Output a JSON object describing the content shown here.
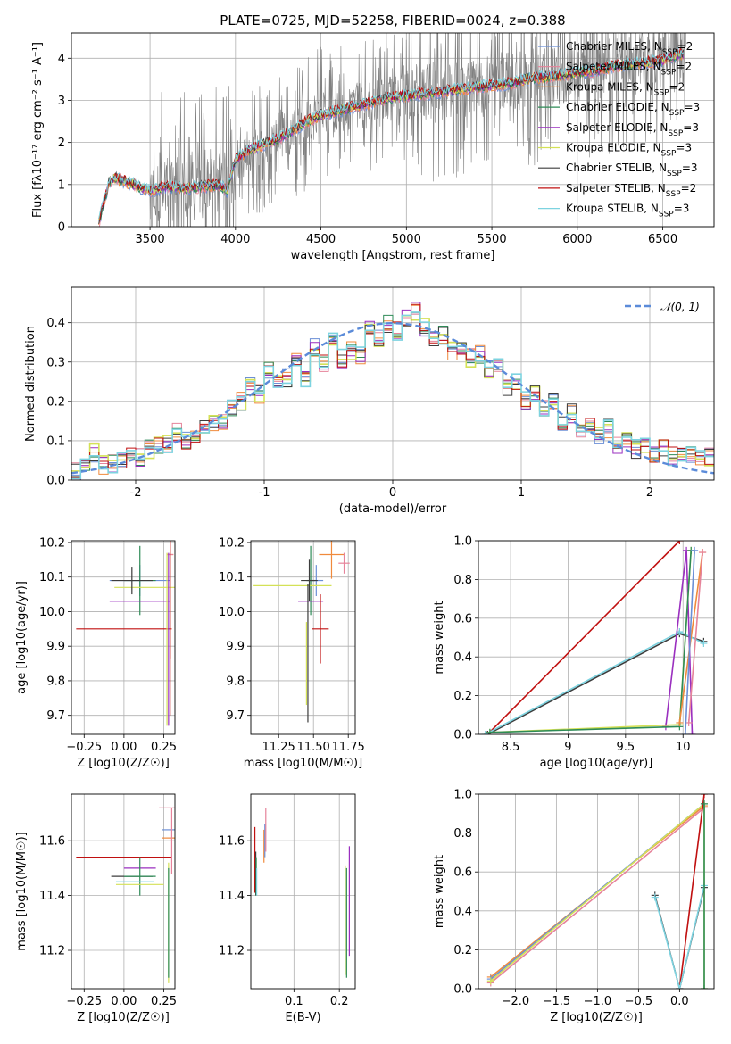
{
  "title": "PLATE=0725, MJD=52258, FIBERID=0024, z=0.388",
  "colors": {
    "Chabrier MILES": "#6b8fd6",
    "Salpeter MILES": "#e6839a",
    "Kroupa MILES": "#f08a3c",
    "Chabrier ELODIE": "#2e8b57",
    "Salpeter ELODIE": "#9a2fbf",
    "Kroupa ELODIE": "#d4e157",
    "Chabrier STELIB": "#3d3d3d",
    "Salpeter STELIB": "#c01010",
    "Kroupa STELIB": "#7dd3e0",
    "data": "#808080",
    "gaussian": "#5b8bd9"
  },
  "chart_data": [
    {
      "id": "spectrum",
      "type": "line",
      "xlabel": "wavelength [Angstrom, rest frame]",
      "ylabel": "Flux [f$_\\lambda$ 10$^{-17}$ erg cm$^{-2}$ s$^{-1}$ A$^{-1}$]",
      "ylabel_display": "Flux [fλ10⁻¹⁷ erg cm⁻² s⁻¹ A⁻¹]",
      "xlim": [
        3040,
        6800
      ],
      "ylim": [
        0,
        4.6
      ],
      "xticks": [
        3500,
        4000,
        4500,
        5000,
        5500,
        6000,
        6500
      ],
      "yticks": [
        0,
        1,
        2,
        3,
        4
      ],
      "legend_position": "upper right",
      "legend": [
        {
          "label": "Chabrier MILES, N",
          "sub": "SSP",
          "tail": "=2",
          "series": "Chabrier MILES"
        },
        {
          "label": "Salpeter MILES, N",
          "sub": "SSP",
          "tail": "=2",
          "series": "Salpeter MILES"
        },
        {
          "label": "Kroupa MILES, N",
          "sub": "SSP",
          "tail": "=2",
          "series": "Kroupa MILES"
        },
        {
          "label": "Chabrier ELODIE, N",
          "sub": "SSP",
          "tail": "=3",
          "series": "Chabrier ELODIE"
        },
        {
          "label": "Salpeter ELODIE, N",
          "sub": "SSP",
          "tail": "=3",
          "series": "Salpeter ELODIE"
        },
        {
          "label": "Kroupa ELODIE, N",
          "sub": "SSP",
          "tail": "=3",
          "series": "Kroupa ELODIE"
        },
        {
          "label": "Chabrier STELIB, N",
          "sub": "SSP",
          "tail": "=3",
          "series": "Chabrier STELIB"
        },
        {
          "label": "Salpeter STELIB, N",
          "sub": "SSP",
          "tail": "=2",
          "series": "Salpeter STELIB"
        },
        {
          "label": "Kroupa STELIB, N",
          "sub": "SSP",
          "tail": "=3",
          "series": "Kroupa STELIB"
        }
      ],
      "continuum_model": {
        "x": [
          3200,
          3260,
          3300,
          3400,
          3500,
          3600,
          3700,
          3800,
          3900,
          3950,
          4000,
          4100,
          4200,
          4300,
          4400,
          4500,
          4600,
          4700,
          4800,
          4850,
          4900,
          5000,
          5100,
          5200,
          5300,
          5400,
          5500,
          5600,
          5700,
          5800,
          5900,
          6000,
          6100,
          6200,
          6300,
          6400,
          6500,
          6600
        ],
        "y": [
          0.1,
          1.05,
          1.15,
          1.0,
          0.85,
          0.95,
          0.9,
          0.95,
          1.0,
          0.85,
          1.6,
          1.85,
          2.0,
          2.2,
          2.45,
          2.65,
          2.75,
          2.85,
          2.95,
          3.0,
          3.05,
          3.1,
          3.15,
          3.2,
          3.25,
          3.3,
          3.35,
          3.4,
          3.5,
          3.55,
          3.6,
          3.65,
          3.7,
          3.8,
          3.85,
          3.9,
          3.95,
          4.1
        ]
      }
    },
    {
      "id": "residuals",
      "type": "histogram",
      "xlabel": "(data-model)/error",
      "ylabel": "Normed distribution",
      "xlim": [
        -2.5,
        2.5
      ],
      "ylim": [
        0,
        0.49
      ],
      "xticks": [
        -2,
        -1,
        0,
        1,
        2
      ],
      "yticks": [
        0.0,
        0.1,
        0.2,
        0.3,
        0.4
      ],
      "legend": "𝒩(0, 1)",
      "bin_width": 0.1,
      "hist_counts": [
        0.02,
        0.04,
        0.07,
        0.04,
        0.04,
        0.05,
        0.07,
        0.06,
        0.08,
        0.09,
        0.09,
        0.12,
        0.1,
        0.12,
        0.14,
        0.14,
        0.15,
        0.18,
        0.2,
        0.24,
        0.22,
        0.28,
        0.24,
        0.26,
        0.31,
        0.26,
        0.34,
        0.3,
        0.36,
        0.31,
        0.33,
        0.32,
        0.38,
        0.36,
        0.4,
        0.38,
        0.41,
        0.43,
        0.39,
        0.36,
        0.37,
        0.33,
        0.34,
        0.31,
        0.32,
        0.28,
        0.29,
        0.24,
        0.25,
        0.2,
        0.22,
        0.18,
        0.2,
        0.15,
        0.17,
        0.12,
        0.14,
        0.11,
        0.13,
        0.09,
        0.1,
        0.08,
        0.09,
        0.07,
        0.08,
        0.06,
        0.07,
        0.06,
        0.05,
        0.06
      ]
    },
    {
      "id": "age-vs-Z",
      "type": "errorbar",
      "xlabel": "Z [log10(Z/Z☉)]",
      "ylabel": "age  [log10(age/yr)]",
      "xlim": [
        -0.33,
        0.32
      ],
      "ylim": [
        9.645,
        10.205
      ],
      "xticks": [
        -0.25,
        0.0,
        0.25
      ],
      "xticklabels": [
        "−0.25",
        "0.00",
        "0.25"
      ],
      "yticks": [
        9.7,
        9.8,
        9.9,
        10.0,
        10.1,
        10.2
      ],
      "points": [
        {
          "series": "Chabrier MILES",
          "x": 0.1,
          "y": 10.09,
          "xerr": 0.19,
          "yerr": 0.045
        },
        {
          "series": "Chabrier ELODIE",
          "x": 0.1,
          "y": 10.09,
          "xerr": 0.1,
          "yerr": 0.1
        },
        {
          "series": "Salpeter ELODIE",
          "x": 0.1,
          "y": 10.03,
          "xerr": 0.19,
          "yerr": 0.0
        },
        {
          "series": "Kroupa ELODIE",
          "x": 0.16,
          "y": 10.07,
          "xerr": 0.22,
          "yerr": 0.0
        },
        {
          "series": "Chabrier STELIB",
          "x": 0.05,
          "y": 10.09,
          "xerr": 0.13,
          "yerr": 0.04
        },
        {
          "series": "Salpeter STELIB",
          "x": 0.0,
          "y": 9.95,
          "xerr": 0.3,
          "yerr": 0.0
        },
        {
          "series": "Kroupa MILES",
          "x": 0.29,
          "y": 10.165,
          "xerr": 0.02,
          "yerr": 0.3
        },
        {
          "series": "Salpeter MILES",
          "x": 0.29,
          "y": 10.165,
          "xerr": 0.02,
          "yerr": 0.3
        },
        {
          "series": "Salpeter STELIB",
          "x": 0.29,
          "y": 10.1,
          "xerr": 0.0,
          "yerr": 0.4
        },
        {
          "series": "Kroupa ELODIE",
          "x": 0.27,
          "y": 9.92,
          "xerr": 0.0,
          "yerr": 0.25
        },
        {
          "series": "Salpeter ELODIE",
          "x": 0.28,
          "y": 9.92,
          "xerr": 0.0,
          "yerr": 0.25
        }
      ]
    },
    {
      "id": "age-vs-mass",
      "type": "errorbar",
      "xlabel": "mass [log10(M/M☉)]",
      "ylabel": "",
      "xlim": [
        11.05,
        11.8
      ],
      "ylim": [
        9.645,
        10.205
      ],
      "xticks": [
        11.25,
        11.5,
        11.75
      ],
      "xticklabels": [
        "11.25",
        "11.50",
        "11.75"
      ],
      "yticks": [
        9.7,
        9.8,
        9.9,
        10.0,
        10.1,
        10.2
      ],
      "points": [
        {
          "series": "Chabrier MILES",
          "x": 11.52,
          "y": 10.09,
          "xerr": 0.05,
          "yerr": 0.045
        },
        {
          "series": "Chabrier ELODIE",
          "x": 11.48,
          "y": 10.09,
          "xerr": 0.03,
          "yerr": 0.1
        },
        {
          "series": "Salpeter ELODIE",
          "x": 11.48,
          "y": 10.03,
          "xerr": 0.09,
          "yerr": 0.0
        },
        {
          "series": "Kroupa ELODIE",
          "x": 11.35,
          "y": 10.075,
          "xerr": 0.28,
          "yerr": 0.0
        },
        {
          "series": "Chabrier STELIB",
          "x": 11.47,
          "y": 10.09,
          "xerr": 0.06,
          "yerr": 0.06
        },
        {
          "series": "Salpeter STELIB",
          "x": 11.55,
          "y": 9.95,
          "xerr": 0.06,
          "yerr": 0.1
        },
        {
          "series": "Kroupa MILES",
          "x": 11.63,
          "y": 10.165,
          "xerr": 0.09,
          "yerr": 0.07
        },
        {
          "series": "Salpeter MILES",
          "x": 11.72,
          "y": 10.14,
          "xerr": 0.04,
          "yerr": 0.03
        },
        {
          "series": "Kroupa ELODIE",
          "x": 11.45,
          "y": 9.85,
          "xerr": 0.0,
          "yerr": 0.12
        },
        {
          "series": "Chabrier STELIB",
          "x": 11.46,
          "y": 9.88,
          "xerr": 0.0,
          "yerr": 0.2
        }
      ]
    },
    {
      "id": "weight-vs-age",
      "type": "line",
      "xlabel": "age  [log10(age/yr)]",
      "ylabel": "mass weight",
      "xlim": [
        8.22,
        10.27
      ],
      "ylim": [
        0.0,
        1.0
      ],
      "xticks": [
        8.5,
        9.0,
        9.5,
        10.0
      ],
      "yticks": [
        0.0,
        0.2,
        0.4,
        0.6,
        0.8,
        1.0
      ],
      "series": [
        {
          "series": "Salpeter STELIB",
          "x": [
            8.3,
            9.97
          ],
          "y": [
            0.0,
            1.0
          ]
        },
        {
          "series": "Chabrier STELIB",
          "x": [
            8.3,
            9.97,
            10.18
          ],
          "y": [
            0.0,
            0.52,
            0.48
          ]
        },
        {
          "series": "Kroupa STELIB",
          "x": [
            8.28,
            9.97,
            10.18
          ],
          "y": [
            0.0,
            0.53,
            0.47
          ]
        },
        {
          "series": "Salpeter ELODIE",
          "x": [
            9.85,
            10.03,
            10.08
          ],
          "y": [
            0.04,
            0.95,
            0.0
          ]
        },
        {
          "series": "Kroupa ELODIE",
          "x": [
            8.32,
            9.97,
            10.07
          ],
          "y": [
            0.01,
            0.05,
            0.95
          ]
        },
        {
          "series": "Chabrier ELODIE",
          "x": [
            8.32,
            9.97,
            10.07
          ],
          "y": [
            0.01,
            0.04,
            0.95
          ]
        },
        {
          "series": "Kroupa MILES",
          "x": [
            9.97,
            10.17
          ],
          "y": [
            0.06,
            0.94
          ]
        },
        {
          "series": "Salpeter MILES",
          "x": [
            10.05,
            10.17
          ],
          "y": [
            0.06,
            0.94
          ]
        },
        {
          "series": "Chabrier MILES",
          "x": [
            10.02,
            10.1
          ],
          "y": [
            0.0,
            0.95
          ]
        }
      ]
    },
    {
      "id": "mass-vs-Z",
      "type": "errorbar",
      "xlabel": "Z [log10(Z/Z☉)]",
      "ylabel": "mass [log10(M/M☉)]",
      "xlim": [
        -0.33,
        0.32
      ],
      "ylim": [
        11.06,
        11.77
      ],
      "xticks": [
        -0.25,
        0.0,
        0.25
      ],
      "xticklabels": [
        "−0.25",
        "0.00",
        "0.25"
      ],
      "yticks": [
        11.2,
        11.4,
        11.6
      ],
      "points": [
        {
          "series": "Salpeter STELIB",
          "x": 0.0,
          "y": 11.54,
          "xerr": 0.3,
          "yerr": 0.0
        },
        {
          "series": "Salpeter ELODIE",
          "x": 0.1,
          "y": 11.5,
          "xerr": 0.1,
          "yerr": 0.0
        },
        {
          "series": "Chabrier STELIB",
          "x": 0.05,
          "y": 11.47,
          "xerr": 0.13,
          "yerr": 0.0
        },
        {
          "series": "Chabrier ELODIE",
          "x": 0.1,
          "y": 11.47,
          "xerr": 0.1,
          "yerr": 0.07
        },
        {
          "series": "Kroupa ELODIE",
          "x": 0.1,
          "y": 11.44,
          "xerr": 0.15,
          "yerr": 0.0
        },
        {
          "series": "Kroupa STELIB",
          "x": 0.07,
          "y": 11.45,
          "xerr": 0.12,
          "yerr": 0.0
        },
        {
          "series": "Chabrier MILES",
          "x": 0.28,
          "y": 11.64,
          "xerr": 0.04,
          "yerr": 0.0
        },
        {
          "series": "Kroupa MILES",
          "x": 0.28,
          "y": 11.61,
          "xerr": 0.04,
          "yerr": 0.0
        },
        {
          "series": "Salpeter MILES",
          "x": 0.27,
          "y": 11.72,
          "xerr": 0.05,
          "yerr": 0.0
        },
        {
          "series": "Salpeter MILES",
          "x": 0.3,
          "y": 11.6,
          "xerr": 0.0,
          "yerr": 0.12
        },
        {
          "series": "Kroupa ELODIE",
          "x": 0.28,
          "y": 11.3,
          "xerr": 0.0,
          "yerr": 0.22
        },
        {
          "series": "Chabrier ELODIE",
          "x": 0.28,
          "y": 11.3,
          "xerr": 0.0,
          "yerr": 0.2
        }
      ]
    },
    {
      "id": "mass-vs-EBV",
      "type": "errorbar",
      "xlabel": "E(B-V)",
      "ylabel": "",
      "xlim": [
        0.005,
        0.235
      ],
      "ylim": [
        11.06,
        11.77
      ],
      "xticks": [
        0.1,
        0.2
      ],
      "xticklabels": [
        "0.1",
        "0.2"
      ],
      "yticks": [
        11.2,
        11.4,
        11.6
      ],
      "points": [
        {
          "series": "Salpeter STELIB",
          "x": 0.014,
          "y": 11.53,
          "xerr": 0.0,
          "yerr": 0.12
        },
        {
          "series": "Chabrier STELIB",
          "x": 0.016,
          "y": 11.48,
          "xerr": 0.0,
          "yerr": 0.08
        },
        {
          "series": "Chabrier ELODIE",
          "x": 0.017,
          "y": 11.47,
          "xerr": 0.0,
          "yerr": 0.07
        },
        {
          "series": "Kroupa STELIB",
          "x": 0.018,
          "y": 11.45,
          "xerr": 0.0,
          "yerr": 0.05
        },
        {
          "series": "Kroupa MILES",
          "x": 0.034,
          "y": 11.58,
          "xerr": 0.0,
          "yerr": 0.06
        },
        {
          "series": "Chabrier MILES",
          "x": 0.036,
          "y": 11.6,
          "xerr": 0.0,
          "yerr": 0.06
        },
        {
          "series": "Salpeter MILES",
          "x": 0.038,
          "y": 11.64,
          "xerr": 0.0,
          "yerr": 0.08
        },
        {
          "series": "Kroupa ELODIE",
          "x": 0.213,
          "y": 11.31,
          "xerr": 0.0,
          "yerr": 0.2
        },
        {
          "series": "Chabrier ELODIE",
          "x": 0.216,
          "y": 11.3,
          "xerr": 0.0,
          "yerr": 0.2
        },
        {
          "series": "Salpeter ELODIE",
          "x": 0.222,
          "y": 11.38,
          "xerr": 0.0,
          "yerr": 0.2
        }
      ]
    },
    {
      "id": "weight-vs-Z",
      "type": "line",
      "xlabel": "Z [log10(Z/Z☉)]",
      "ylabel": "mass weight",
      "xlim": [
        -2.45,
        0.42
      ],
      "ylim": [
        0.0,
        1.0
      ],
      "xticks": [
        -2.0,
        -1.5,
        -1.0,
        -0.5,
        0.0
      ],
      "xticklabels": [
        "−2.0",
        "−1.5",
        "−1.0",
        "−0.5",
        "0.0"
      ],
      "yticks": [
        0.0,
        0.2,
        0.4,
        0.6,
        0.8,
        1.0
      ],
      "series": [
        {
          "series": "Salpeter MILES",
          "x": [
            -2.3,
            0.3
          ],
          "y": [
            0.03,
            0.93
          ]
        },
        {
          "series": "Kroupa MILES",
          "x": [
            -2.3,
            0.3
          ],
          "y": [
            0.06,
            0.94
          ]
        },
        {
          "series": "Chabrier MILES",
          "x": [
            -2.3,
            0.3
          ],
          "y": [
            0.05,
            0.95
          ]
        },
        {
          "series": "Kroupa ELODIE",
          "x": [
            -2.3,
            0.3,
            0.3
          ],
          "y": [
            0.04,
            0.95,
            0.0
          ]
        },
        {
          "series": "Salpeter STELIB",
          "x": [
            0.0,
            0.3
          ],
          "y": [
            0.0,
            1.0
          ]
        },
        {
          "series": "Chabrier STELIB",
          "x": [
            -0.3,
            0.0,
            0.3
          ],
          "y": [
            0.48,
            0.0,
            0.52
          ]
        },
        {
          "series": "Kroupa STELIB",
          "x": [
            -0.3,
            0.0,
            0.3
          ],
          "y": [
            0.47,
            0.0,
            0.53
          ]
        },
        {
          "series": "Chabrier ELODIE",
          "x": [
            0.3,
            0.3
          ],
          "y": [
            0.0,
            0.95
          ]
        }
      ]
    }
  ]
}
